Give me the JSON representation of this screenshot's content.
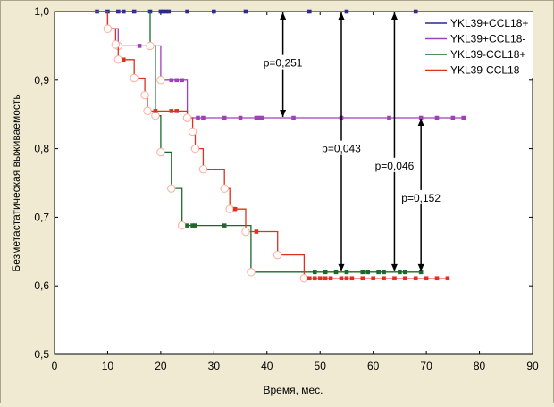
{
  "chart_data": {
    "type": "line",
    "step": true,
    "xlabel": "Время, мес.",
    "ylabel": "Безметастатическая выживаемость",
    "xlim": [
      0,
      90
    ],
    "ylim": [
      0.5,
      1.0
    ],
    "x_ticks": [
      "0",
      "10",
      "20",
      "30",
      "40",
      "50",
      "60",
      "70",
      "80",
      "90"
    ],
    "y_ticks": [
      "0,5",
      "0,6",
      "0,7",
      "0,8",
      "0,9",
      "1,0"
    ],
    "legend_position": "top-right",
    "series": [
      {
        "name": "YKL39+CCL18+",
        "color": "#2b2b8c",
        "steps": [
          [
            0,
            1.0
          ],
          [
            68,
            1.0
          ]
        ],
        "censored_square": [
          [
            8,
            1.0
          ],
          [
            10,
            1.0
          ],
          [
            12,
            1.0
          ],
          [
            13,
            1.0
          ],
          [
            15,
            1.0
          ],
          [
            18,
            1.0
          ],
          [
            20,
            1.0
          ],
          [
            20.5,
            1.0
          ],
          [
            21,
            1.0
          ],
          [
            21.5,
            1.0
          ],
          [
            25,
            1.0
          ],
          [
            30,
            1.0
          ],
          [
            36,
            1.0
          ],
          [
            48,
            1.0
          ],
          [
            55,
            1.0
          ],
          [
            68,
            1.0
          ]
        ],
        "events_circle": []
      },
      {
        "name": "YKL39+CCL18-",
        "color": "#a040b8",
        "steps": [
          [
            0,
            1.0
          ],
          [
            10,
            1.0
          ],
          [
            10,
            0.975
          ],
          [
            12,
            0.975
          ],
          [
            12,
            0.95
          ],
          [
            20,
            0.95
          ],
          [
            20,
            0.9
          ],
          [
            25,
            0.9
          ],
          [
            25,
            0.845
          ],
          [
            77,
            0.845
          ]
        ],
        "censored_square": [
          [
            16,
            0.95
          ],
          [
            22,
            0.9
          ],
          [
            23,
            0.9
          ],
          [
            24,
            0.9
          ],
          [
            27,
            0.845
          ],
          [
            28,
            0.845
          ],
          [
            32,
            0.845
          ],
          [
            35,
            0.845
          ],
          [
            38,
            0.845
          ],
          [
            38.5,
            0.845
          ],
          [
            39,
            0.845
          ],
          [
            45,
            0.845
          ],
          [
            54,
            0.845
          ],
          [
            63,
            0.845
          ],
          [
            69,
            0.845
          ],
          [
            72,
            0.845
          ],
          [
            75,
            0.845
          ],
          [
            77,
            0.845
          ]
        ],
        "events_circle": [
          [
            10,
            0.975
          ],
          [
            12,
            0.95
          ],
          [
            20,
            0.9
          ],
          [
            25,
            0.845
          ]
        ]
      },
      {
        "name": "YKL39-CCL18+",
        "color": "#1a6b2a",
        "steps": [
          [
            0,
            1.0
          ],
          [
            18,
            1.0
          ],
          [
            18,
            0.95
          ],
          [
            19,
            0.95
          ],
          [
            19,
            0.848
          ],
          [
            20,
            0.848
          ],
          [
            20,
            0.795
          ],
          [
            22,
            0.795
          ],
          [
            22,
            0.742
          ],
          [
            24,
            0.742
          ],
          [
            24,
            0.688
          ],
          [
            37,
            0.688
          ],
          [
            37,
            0.62
          ],
          [
            69,
            0.62
          ]
        ],
        "censored_square": [
          [
            25,
            0.688
          ],
          [
            26,
            0.688
          ],
          [
            26.5,
            0.688
          ],
          [
            32,
            0.688
          ],
          [
            49,
            0.62
          ],
          [
            51,
            0.62
          ],
          [
            53,
            0.62
          ],
          [
            55,
            0.62
          ],
          [
            58,
            0.62
          ],
          [
            59,
            0.62
          ],
          [
            61,
            0.62
          ],
          [
            62,
            0.62
          ],
          [
            65,
            0.62
          ],
          [
            66,
            0.62
          ],
          [
            69,
            0.62
          ]
        ],
        "events_circle": [
          [
            18,
            0.95
          ],
          [
            19,
            0.848
          ],
          [
            20,
            0.795
          ],
          [
            22,
            0.742
          ],
          [
            24,
            0.688
          ],
          [
            37,
            0.62
          ]
        ]
      },
      {
        "name": "YKL39-CCL18-",
        "color": "#e03020",
        "steps": [
          [
            0,
            1.0
          ],
          [
            10,
            1.0
          ],
          [
            10,
            0.975
          ],
          [
            11.5,
            0.975
          ],
          [
            11.5,
            0.952
          ],
          [
            12,
            0.952
          ],
          [
            12,
            0.93
          ],
          [
            15,
            0.93
          ],
          [
            15,
            0.903
          ],
          [
            17,
            0.903
          ],
          [
            17,
            0.878
          ],
          [
            17.5,
            0.878
          ],
          [
            17.5,
            0.855
          ],
          [
            25,
            0.855
          ],
          [
            25,
            0.845
          ],
          [
            26,
            0.845
          ],
          [
            26,
            0.825
          ],
          [
            26.5,
            0.825
          ],
          [
            26.5,
            0.8
          ],
          [
            28,
            0.8
          ],
          [
            28,
            0.77
          ],
          [
            32,
            0.77
          ],
          [
            32,
            0.742
          ],
          [
            33,
            0.742
          ],
          [
            33,
            0.712
          ],
          [
            36,
            0.712
          ],
          [
            36,
            0.679
          ],
          [
            42,
            0.679
          ],
          [
            42,
            0.645
          ],
          [
            47,
            0.645
          ],
          [
            47,
            0.611
          ],
          [
            74,
            0.611
          ]
        ],
        "censored_square": [
          [
            13,
            0.93
          ],
          [
            19,
            0.855
          ],
          [
            22,
            0.855
          ],
          [
            23,
            0.855
          ],
          [
            34,
            0.712
          ],
          [
            38,
            0.679
          ],
          [
            48,
            0.611
          ],
          [
            49,
            0.611
          ],
          [
            50,
            0.611
          ],
          [
            51,
            0.611
          ],
          [
            52,
            0.611
          ],
          [
            54,
            0.611
          ],
          [
            55,
            0.611
          ],
          [
            56,
            0.611
          ],
          [
            58,
            0.611
          ],
          [
            60,
            0.611
          ],
          [
            62,
            0.611
          ],
          [
            64,
            0.611
          ],
          [
            66,
            0.611
          ],
          [
            68,
            0.611
          ],
          [
            70,
            0.611
          ],
          [
            72,
            0.611
          ],
          [
            74,
            0.611
          ]
        ],
        "events_circle": [
          [
            10,
            0.975
          ],
          [
            11.5,
            0.952
          ],
          [
            12,
            0.93
          ],
          [
            15,
            0.903
          ],
          [
            17,
            0.878
          ],
          [
            17.5,
            0.855
          ],
          [
            25,
            0.845
          ],
          [
            26,
            0.825
          ],
          [
            26.5,
            0.8
          ],
          [
            28,
            0.77
          ],
          [
            32,
            0.742
          ],
          [
            33,
            0.712
          ],
          [
            36,
            0.679
          ],
          [
            42,
            0.645
          ],
          [
            47,
            0.611
          ]
        ]
      }
    ],
    "annotations": [
      {
        "text": "p=0,251",
        "x": 43,
        "y_from": 1.0,
        "y_to": 0.845,
        "label_y": 0.925
      },
      {
        "text": "p=0,043",
        "x": 54,
        "y_from": 1.0,
        "y_to": 0.62,
        "label_y": 0.8
      },
      {
        "text": "p=0,046",
        "x": 64,
        "y_from": 1.0,
        "y_to": 0.62,
        "label_y": 0.775
      },
      {
        "text": "p=0,152",
        "x": 69,
        "y_from": 0.845,
        "y_to": 0.62,
        "label_y": 0.728
      }
    ]
  }
}
